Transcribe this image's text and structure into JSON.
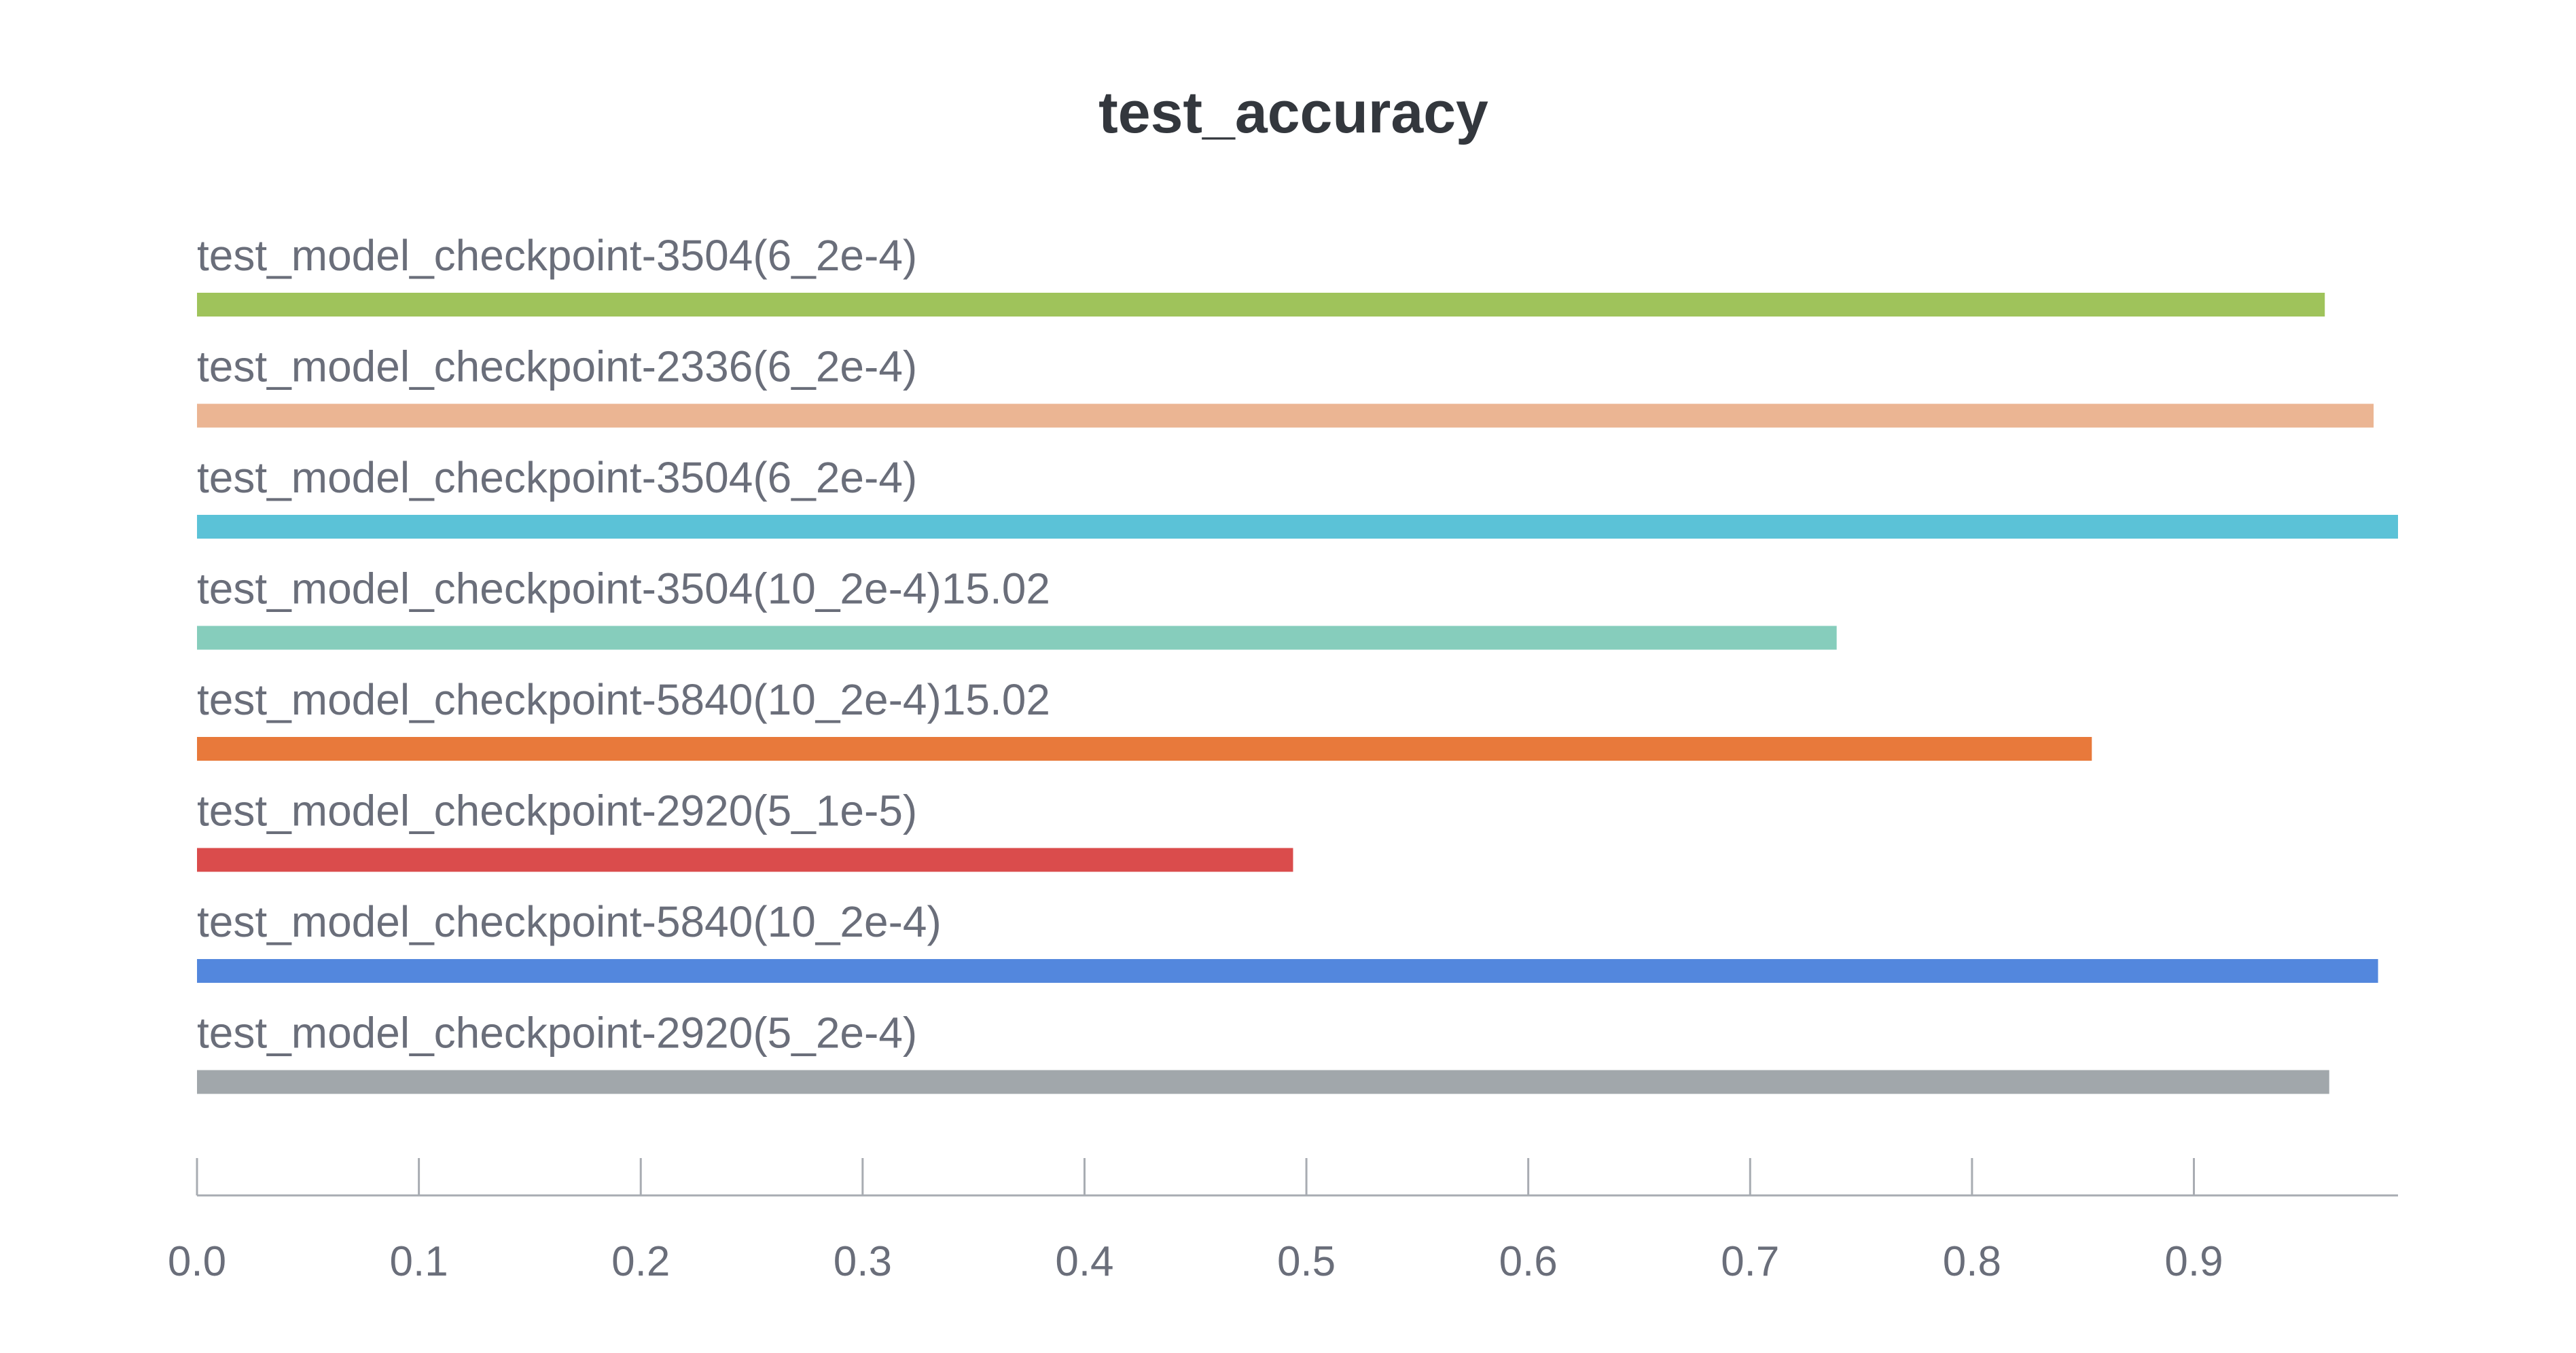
{
  "chart_data": {
    "type": "bar",
    "orientation": "horizontal",
    "title": "test_accuracy",
    "xlabel": "",
    "ylabel": "",
    "xlim": [
      0,
      0.992
    ],
    "x_ticks": [
      "0.0",
      "0.1",
      "0.2",
      "0.3",
      "0.4",
      "0.5",
      "0.6",
      "0.7",
      "0.8",
      "0.9"
    ],
    "grid": false,
    "legend": "none",
    "categories": [
      "test_model_checkpoint-3504(6_2e-4)",
      "test_model_checkpoint-2336(6_2e-4)",
      "test_model_checkpoint-3504(6_2e-4)",
      "test_model_checkpoint-3504(10_2e-4)15.02",
      "test_model_checkpoint-5840(10_2e-4)15.02",
      "test_model_checkpoint-2920(5_1e-5)",
      "test_model_checkpoint-5840(10_2e-4)",
      "test_model_checkpoint-2920(5_2e-4)"
    ],
    "values": [
      0.959,
      0.981,
      0.992,
      0.739,
      0.854,
      0.494,
      0.983,
      0.961
    ],
    "colors": [
      "#9fc35b",
      "#ebb593",
      "#5bc2d7",
      "#86cdbc",
      "#e8793b",
      "#da4c4c",
      "#5387dd",
      "#a1a7ab"
    ]
  }
}
